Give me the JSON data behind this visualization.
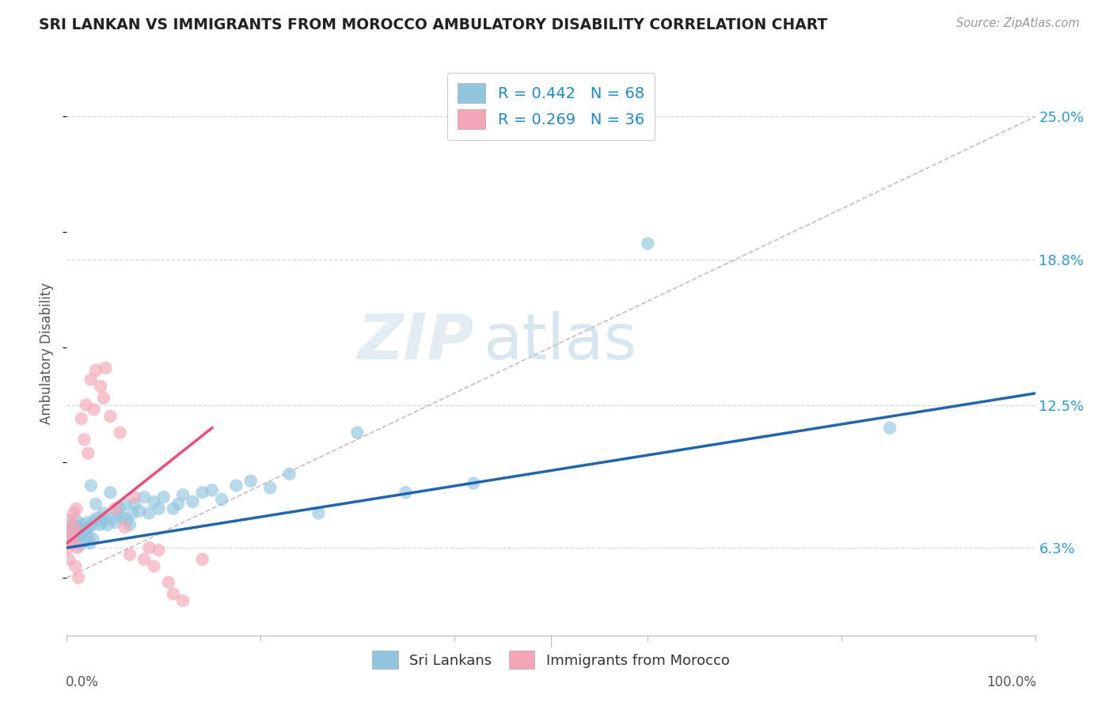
{
  "title": "SRI LANKAN VS IMMIGRANTS FROM MOROCCO AMBULATORY DISABILITY CORRELATION CHART",
  "source": "Source: ZipAtlas.com",
  "ylabel": "Ambulatory Disability",
  "ytick_labels": [
    "6.3%",
    "12.5%",
    "18.8%",
    "25.0%"
  ],
  "ytick_values": [
    0.063,
    0.125,
    0.188,
    0.25
  ],
  "xlim": [
    0.0,
    1.0
  ],
  "ylim": [
    0.025,
    0.27
  ],
  "legend_sri_r": "0.442",
  "legend_sri_n": "68",
  "legend_mor_r": "0.269",
  "legend_mor_n": "36",
  "sri_color": "#92c5de",
  "mor_color": "#f4a6b8",
  "sri_line_color": "#2166ac",
  "mor_line_color": "#e8507a",
  "dashed_line_color": "#ccbbbb",
  "background": "#ffffff",
  "watermark_zip": "ZIP",
  "watermark_atlas": "atlas",
  "sri_label": "Sri Lankans",
  "mor_label": "Immigrants from Morocco",
  "sri_x": [
    0.002,
    0.003,
    0.004,
    0.005,
    0.006,
    0.007,
    0.008,
    0.009,
    0.01,
    0.011,
    0.012,
    0.013,
    0.014,
    0.015,
    0.016,
    0.017,
    0.018,
    0.019,
    0.02,
    0.021,
    0.022,
    0.023,
    0.024,
    0.025,
    0.026,
    0.027,
    0.028,
    0.03,
    0.032,
    0.034,
    0.036,
    0.038,
    0.04,
    0.042,
    0.045,
    0.048,
    0.05,
    0.052,
    0.055,
    0.058,
    0.06,
    0.062,
    0.065,
    0.068,
    0.07,
    0.075,
    0.08,
    0.085,
    0.09,
    0.095,
    0.1,
    0.11,
    0.115,
    0.12,
    0.13,
    0.14,
    0.15,
    0.16,
    0.175,
    0.19,
    0.21,
    0.23,
    0.26,
    0.3,
    0.35,
    0.42,
    0.6,
    0.85
  ],
  "sri_y": [
    0.069,
    0.071,
    0.068,
    0.073,
    0.066,
    0.072,
    0.07,
    0.067,
    0.075,
    0.069,
    0.072,
    0.064,
    0.07,
    0.068,
    0.073,
    0.071,
    0.066,
    0.069,
    0.071,
    0.074,
    0.068,
    0.072,
    0.065,
    0.09,
    0.073,
    0.067,
    0.075,
    0.082,
    0.076,
    0.073,
    0.074,
    0.078,
    0.075,
    0.073,
    0.087,
    0.076,
    0.074,
    0.078,
    0.08,
    0.076,
    0.082,
    0.075,
    0.073,
    0.078,
    0.082,
    0.079,
    0.085,
    0.078,
    0.083,
    0.08,
    0.085,
    0.08,
    0.082,
    0.086,
    0.083,
    0.087,
    0.088,
    0.084,
    0.09,
    0.092,
    0.089,
    0.095,
    0.078,
    0.113,
    0.087,
    0.091,
    0.195,
    0.115
  ],
  "mor_x": [
    0.001,
    0.002,
    0.003,
    0.004,
    0.005,
    0.006,
    0.007,
    0.008,
    0.009,
    0.01,
    0.011,
    0.012,
    0.015,
    0.018,
    0.02,
    0.022,
    0.025,
    0.028,
    0.03,
    0.035,
    0.038,
    0.04,
    0.045,
    0.05,
    0.055,
    0.06,
    0.065,
    0.07,
    0.08,
    0.085,
    0.09,
    0.095,
    0.105,
    0.11,
    0.12,
    0.14
  ],
  "mor_y": [
    0.063,
    0.058,
    0.075,
    0.068,
    0.07,
    0.065,
    0.078,
    0.072,
    0.055,
    0.08,
    0.063,
    0.05,
    0.119,
    0.11,
    0.125,
    0.104,
    0.136,
    0.123,
    0.14,
    0.133,
    0.128,
    0.141,
    0.12,
    0.08,
    0.113,
    0.072,
    0.06,
    0.085,
    0.058,
    0.063,
    0.055,
    0.062,
    0.048,
    0.043,
    0.04,
    0.058
  ]
}
